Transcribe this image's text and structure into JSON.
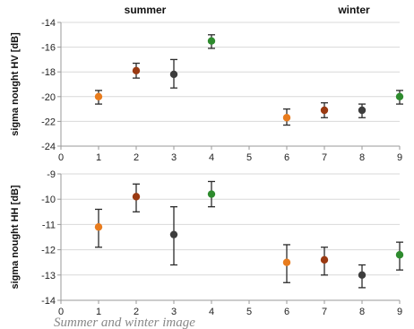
{
  "season_labels": [
    "summer",
    "winter"
  ],
  "caption": "Summer and winter image",
  "colors": {
    "orange": "#e87c1e",
    "brown": "#9a3a12",
    "dark": "#3d3d3d",
    "green": "#2e8b2e",
    "axis": "#9a9a9a",
    "grid": "#d9d9d9"
  },
  "chart_data": [
    {
      "type": "scatter",
      "ylabel": "sigma nought HV [dB]",
      "xlim": [
        0,
        9
      ],
      "ylim": [
        -24,
        -14
      ],
      "x_ticks": [
        "0",
        "1",
        "2",
        "3",
        "4",
        "5",
        "6",
        "7",
        "8",
        "9"
      ],
      "y_ticks": [
        "-14",
        "-16",
        "-18",
        "-20",
        "-22",
        "-24"
      ],
      "y_tick_values": [
        -14,
        -16,
        -18,
        -20,
        -22,
        -24
      ],
      "grid": "horizontal",
      "points": [
        {
          "x": 1,
          "y": -20.0,
          "low": -20.6,
          "high": -19.5,
          "color": "orange"
        },
        {
          "x": 2,
          "y": -17.9,
          "low": -18.5,
          "high": -17.3,
          "color": "brown"
        },
        {
          "x": 3,
          "y": -18.2,
          "low": -19.3,
          "high": -17.0,
          "color": "dark"
        },
        {
          "x": 4,
          "y": -15.5,
          "low": -16.1,
          "high": -15.0,
          "color": "green"
        },
        {
          "x": 6,
          "y": -21.7,
          "low": -22.3,
          "high": -21.0,
          "color": "orange"
        },
        {
          "x": 7,
          "y": -21.1,
          "low": -21.7,
          "high": -20.5,
          "color": "brown"
        },
        {
          "x": 8,
          "y": -21.1,
          "low": -21.7,
          "high": -20.6,
          "color": "dark"
        },
        {
          "x": 9,
          "y": -20.0,
          "low": -20.6,
          "high": -19.5,
          "color": "green"
        }
      ]
    },
    {
      "type": "scatter",
      "ylabel": "sigma nought HH [dB]",
      "xlim": [
        0,
        9
      ],
      "ylim": [
        -14,
        -9
      ],
      "x_ticks": [
        "0",
        "1",
        "2",
        "3",
        "4",
        "5",
        "6",
        "7",
        "8",
        "9"
      ],
      "y_ticks": [
        "-9",
        "-10",
        "-11",
        "-12",
        "-13",
        "-14"
      ],
      "y_tick_values": [
        -9,
        -10,
        -11,
        -12,
        -13,
        -14
      ],
      "grid": "horizontal",
      "points": [
        {
          "x": 1,
          "y": -11.1,
          "low": -11.9,
          "high": -10.4,
          "color": "orange"
        },
        {
          "x": 2,
          "y": -9.9,
          "low": -10.5,
          "high": -9.4,
          "color": "brown"
        },
        {
          "x": 3,
          "y": -11.4,
          "low": -12.6,
          "high": -10.3,
          "color": "dark"
        },
        {
          "x": 4,
          "y": -9.8,
          "low": -10.3,
          "high": -9.3,
          "color": "green"
        },
        {
          "x": 6,
          "y": -12.5,
          "low": -13.3,
          "high": -11.8,
          "color": "orange"
        },
        {
          "x": 7,
          "y": -12.4,
          "low": -13.0,
          "high": -11.9,
          "color": "brown"
        },
        {
          "x": 8,
          "y": -13.0,
          "low": -13.5,
          "high": -12.6,
          "color": "dark"
        },
        {
          "x": 9,
          "y": -12.2,
          "low": -12.8,
          "high": -11.7,
          "color": "green"
        }
      ]
    }
  ]
}
